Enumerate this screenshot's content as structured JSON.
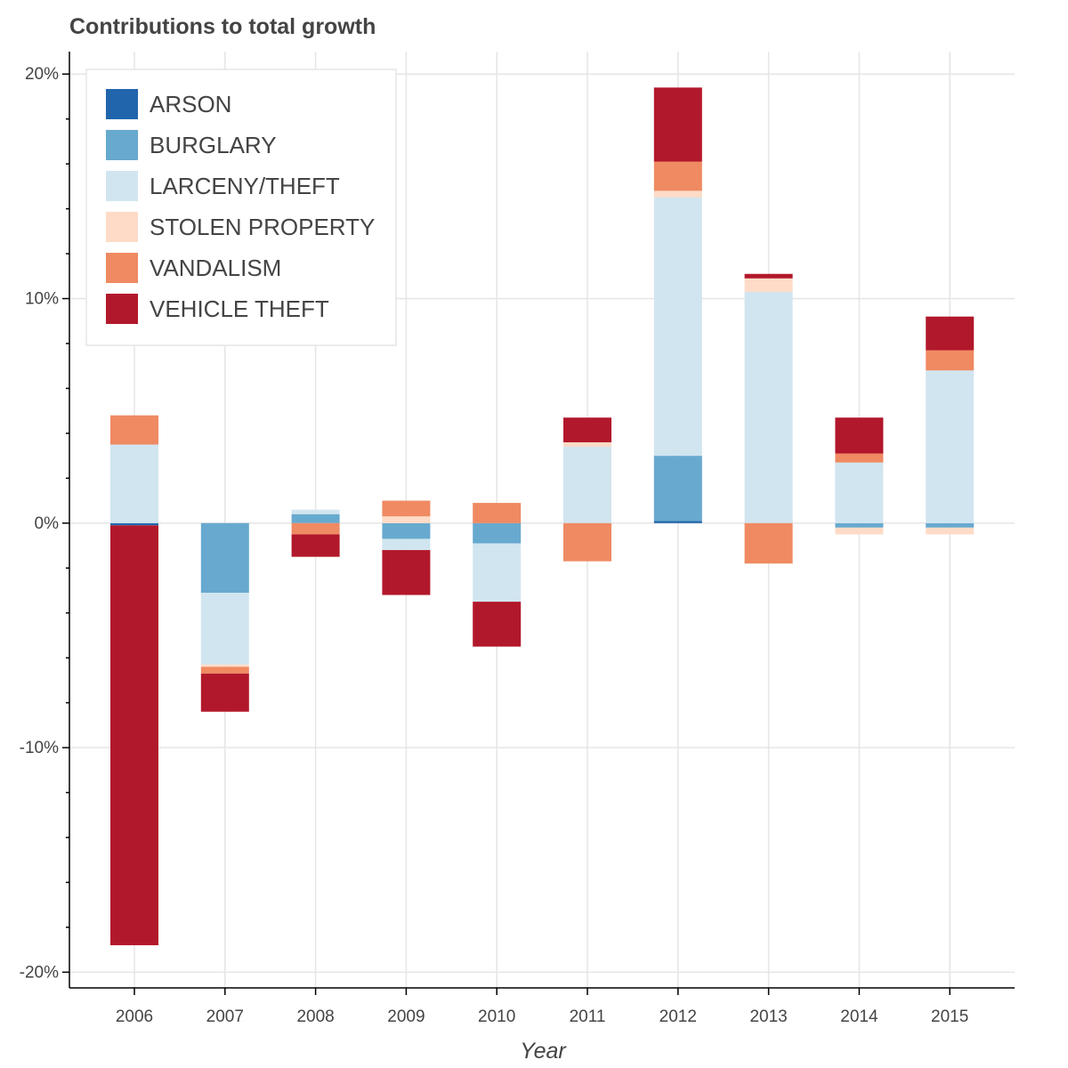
{
  "chart_data": {
    "type": "bar",
    "stacked": true,
    "title": "Contributions to total growth",
    "xlabel": "Year",
    "ylabel": "",
    "ylim": [
      -20.7,
      21
    ],
    "yticks": [
      -20,
      -10,
      0,
      10,
      20
    ],
    "ytick_labels": [
      "-20%",
      "-10%",
      "0%",
      "10%",
      "20%"
    ],
    "y_unit": "%",
    "grid": true,
    "legend_position": "top-left",
    "categories": [
      "2006",
      "2007",
      "2008",
      "2009",
      "2010",
      "2011",
      "2012",
      "2013",
      "2014",
      "2015"
    ],
    "series": [
      {
        "name": "ARSON",
        "color": "#2166ac",
        "values": [
          -0.1,
          0.0,
          0.0,
          0.0,
          0.0,
          0.0,
          0.1,
          0.0,
          0.0,
          0.0
        ]
      },
      {
        "name": "BURGLARY",
        "color": "#67a9cf",
        "values": [
          0.0,
          -3.1,
          0.4,
          -0.7,
          -0.9,
          0.0,
          2.9,
          0.0,
          -0.2,
          -0.2
        ]
      },
      {
        "name": "LARCENY/THEFT",
        "color": "#d1e5f0",
        "values": [
          3.5,
          -3.2,
          0.2,
          -0.5,
          -2.6,
          3.4,
          11.5,
          10.3,
          2.7,
          6.8
        ]
      },
      {
        "name": "STOLEN PROPERTY",
        "color": "#fddbc7",
        "values": [
          0.0,
          -0.1,
          0.0,
          0.3,
          0.0,
          0.2,
          0.3,
          0.6,
          -0.3,
          -0.3
        ]
      },
      {
        "name": "VANDALISM",
        "color": "#ef8a62",
        "values": [
          1.3,
          -0.3,
          -0.5,
          0.7,
          0.9,
          -1.7,
          1.3,
          -1.8,
          0.4,
          0.9
        ]
      },
      {
        "name": "VEHICLE THEFT",
        "color": "#b2182b",
        "values": [
          -18.7,
          -1.7,
          -1.0,
          -2.0,
          -2.0,
          1.1,
          3.3,
          0.2,
          1.6,
          1.5
        ]
      }
    ]
  }
}
